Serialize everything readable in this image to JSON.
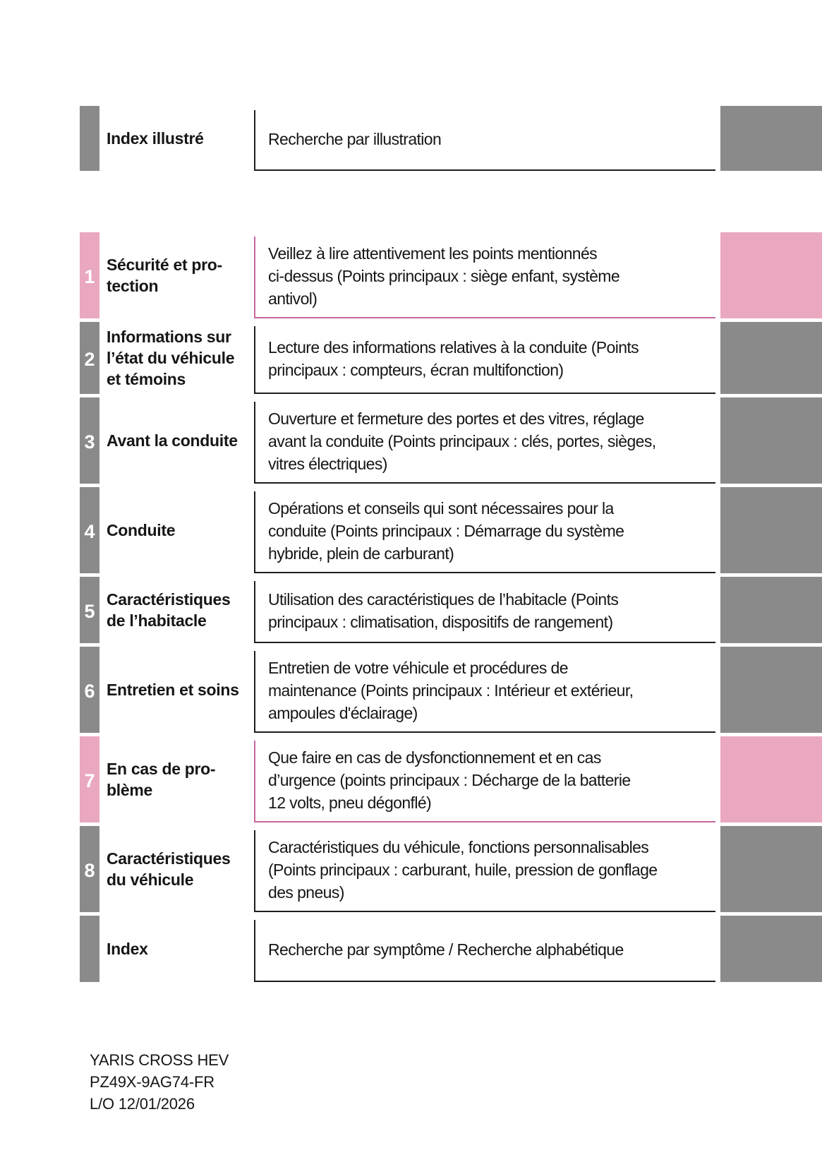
{
  "colors": {
    "gray_tab": "#8a8a8a",
    "pink_tab": "#e9a8c0",
    "pink_border": "#c4679c",
    "dark_border": "#1d1d1d",
    "text": "#161616"
  },
  "toc": {
    "top_row": {
      "number": "",
      "label": "Index illustré",
      "description": "Recherche par illustration",
      "accent": "gray"
    },
    "rows": [
      {
        "number": "1",
        "label": "Sécurité et pro-\ntection",
        "description": "Veillez à lire attentivement les points mentionnés\nci-dessus (Points principaux : siège enfant, système\nantivol)",
        "accent": "pink"
      },
      {
        "number": "2",
        "label": "Informations sur\nl’état du véhicule\net témoins",
        "description": "Lecture des informations relatives à la conduite (Points\nprincipaux : compteurs, écran multifonction)",
        "accent": "gray"
      },
      {
        "number": "3",
        "label": "Avant la conduite",
        "description": "Ouverture et fermeture des portes et des vitres, réglage\navant la conduite (Points principaux : clés, portes, sièges,\nvitres électriques)",
        "accent": "gray"
      },
      {
        "number": "4",
        "label": "Conduite",
        "description": "Opérations et conseils qui sont nécessaires pour la\nconduite (Points principaux : Démarrage du système\nhybride, plein de carburant)",
        "accent": "gray"
      },
      {
        "number": "5",
        "label": "Caractéristiques\nde l’habitacle",
        "description": "Utilisation des caractéristiques de l’habitacle (Points\nprincipaux : climatisation, dispositifs de rangement)",
        "accent": "gray"
      },
      {
        "number": "6",
        "label": "Entretien et soins",
        "description": "Entretien de votre véhicule et procédures de\nmaintenance (Points principaux : Intérieur et extérieur,\nampoules d'éclairage)",
        "accent": "gray"
      },
      {
        "number": "7",
        "label": "En cas de pro-\nblème",
        "description": "Que faire en cas de dysfonctionnement et en cas\nd’urgence (points principaux : Décharge de la batterie\n12 volts, pneu dégonflé)",
        "accent": "pink"
      },
      {
        "number": "8",
        "label": "Caractéristiques\ndu véhicule",
        "description": "Caractéristiques du véhicule, fonctions personnalisables\n(Points principaux : carburant, huile, pression de gonflage\ndes pneus)",
        "accent": "gray"
      },
      {
        "number": "",
        "label": "Index",
        "description": "Recherche par symptôme / Recherche alphabétique",
        "accent": "gray"
      }
    ]
  },
  "footer": {
    "model": "YARIS CROSS HEV",
    "part_number": "PZ49X-9AG74-FR",
    "layout_date": "L/O 12/01/2026"
  }
}
